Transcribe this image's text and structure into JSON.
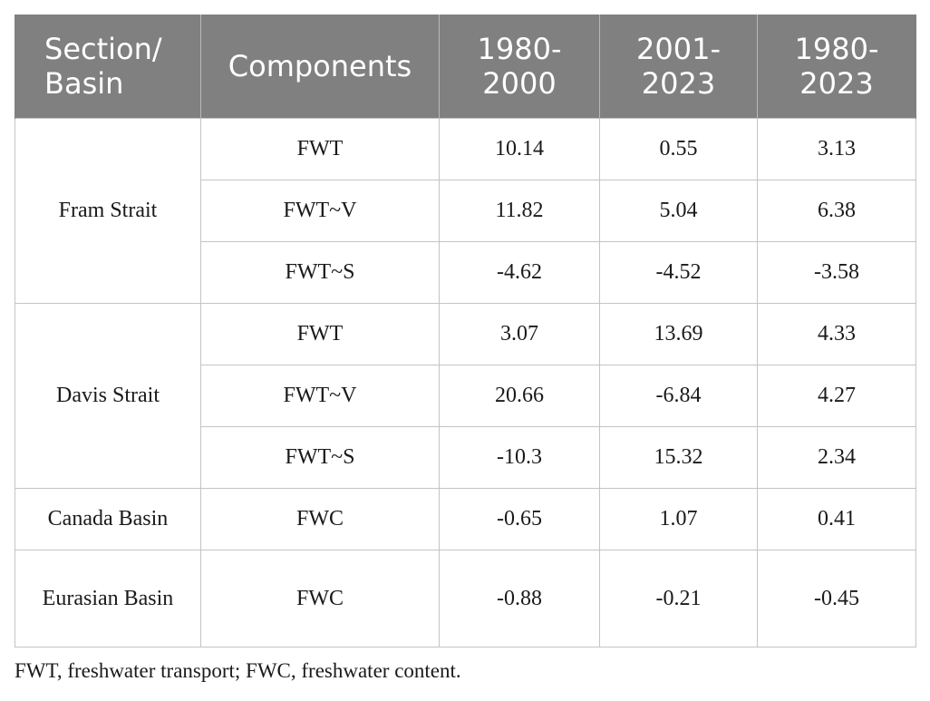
{
  "table": {
    "headers": {
      "section_basin": "Section/ Basin",
      "components": "Components",
      "period_1": "1980-2000",
      "period_2": "2001-2023",
      "period_3": "1980-2023"
    },
    "groups": [
      {
        "name": "Fram Strait",
        "rows": [
          {
            "component": "FWT",
            "values": [
              "10.14",
              "0.55",
              "3.13"
            ]
          },
          {
            "component": "FWT~V",
            "values": [
              "11.82",
              "5.04",
              "6.38"
            ]
          },
          {
            "component": "FWT~S",
            "values": [
              "-4.62",
              "-4.52",
              "-3.58"
            ]
          }
        ]
      },
      {
        "name": "Davis Strait",
        "rows": [
          {
            "component": "FWT",
            "values": [
              "3.07",
              "13.69",
              "4.33"
            ]
          },
          {
            "component": "FWT~V",
            "values": [
              "20.66",
              "-6.84",
              "4.27"
            ]
          },
          {
            "component": "FWT~S",
            "values": [
              "-10.3",
              "15.32",
              "2.34"
            ]
          }
        ]
      },
      {
        "name": "Canada Basin",
        "rows": [
          {
            "component": "FWC",
            "values": [
              "-0.65",
              "1.07",
              "0.41"
            ]
          }
        ]
      },
      {
        "name": "Eurasian Basin",
        "rows": [
          {
            "component": "FWC",
            "values": [
              "-0.88",
              "-0.21",
              "-0.45"
            ]
          }
        ]
      }
    ]
  },
  "footnote": "FWT, freshwater transport; FWC, freshwater content."
}
